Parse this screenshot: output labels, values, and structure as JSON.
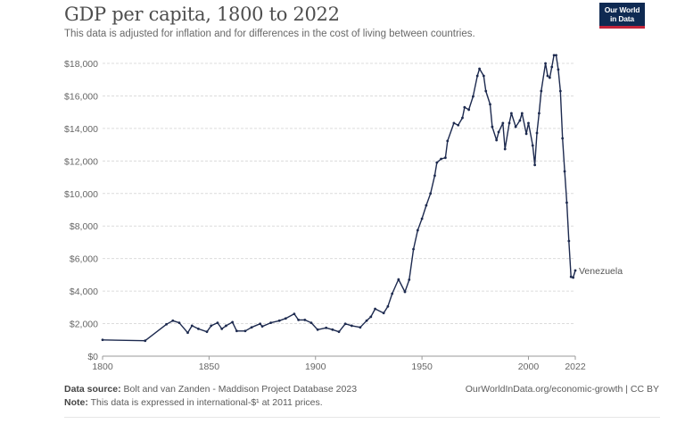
{
  "header": {
    "title": "GDP per capita, 1800 to 2022",
    "subtitle": "This data is adjusted for inflation and for differences in the cost of living between countries.",
    "logo_text": "Our World in Data"
  },
  "footer": {
    "source_label": "Data source:",
    "source_text": "Bolt and van Zanden - Maddison Project Database 2023",
    "note_label": "Note:",
    "note_text": "This data is expressed in international-$¹ at 2011 prices.",
    "credit": "OurWorldInData.org/economic-growth | CC BY"
  },
  "chart_data": {
    "type": "line",
    "title": "GDP per capita, 1800 to 2022",
    "xlim": [
      1800,
      2022
    ],
    "ylim": [
      0,
      18000
    ],
    "x_ticks": [
      "1800",
      "1850",
      "1900",
      "1950",
      "2000",
      "2022"
    ],
    "y_ticks": [
      "$0",
      "$2,000",
      "$4,000",
      "$6,000",
      "$8,000",
      "$10,000",
      "$12,000",
      "$14,000",
      "$16,000",
      "$18,000"
    ],
    "grid": "horizontal dotted",
    "line_color": "#1d2a4f",
    "series": [
      {
        "name": "Venezuela",
        "points": [
          [
            1800,
            1000
          ],
          [
            1820,
            950
          ],
          [
            1830,
            1960
          ],
          [
            1833,
            2180
          ],
          [
            1836,
            2050
          ],
          [
            1840,
            1440
          ],
          [
            1842,
            1870
          ],
          [
            1845,
            1680
          ],
          [
            1849,
            1500
          ],
          [
            1851,
            1870
          ],
          [
            1854,
            2050
          ],
          [
            1856,
            1680
          ],
          [
            1858,
            1870
          ],
          [
            1861,
            2090
          ],
          [
            1863,
            1550
          ],
          [
            1867,
            1550
          ],
          [
            1870,
            1770
          ],
          [
            1874,
            1990
          ],
          [
            1875,
            1830
          ],
          [
            1879,
            2050
          ],
          [
            1883,
            2180
          ],
          [
            1886,
            2320
          ],
          [
            1890,
            2600
          ],
          [
            1892,
            2230
          ],
          [
            1895,
            2230
          ],
          [
            1898,
            2050
          ],
          [
            1901,
            1630
          ],
          [
            1905,
            1740
          ],
          [
            1908,
            1630
          ],
          [
            1911,
            1500
          ],
          [
            1914,
            1990
          ],
          [
            1917,
            1870
          ],
          [
            1921,
            1770
          ],
          [
            1924,
            2180
          ],
          [
            1926,
            2420
          ],
          [
            1928,
            2910
          ],
          [
            1932,
            2650
          ],
          [
            1934,
            3060
          ],
          [
            1936,
            3840
          ],
          [
            1939,
            4720
          ],
          [
            1942,
            3950
          ],
          [
            1944,
            4700
          ],
          [
            1946,
            6580
          ],
          [
            1948,
            7740
          ],
          [
            1950,
            8450
          ],
          [
            1952,
            9270
          ],
          [
            1954,
            10000
          ],
          [
            1956,
            11100
          ],
          [
            1957,
            11900
          ],
          [
            1959,
            12130
          ],
          [
            1961,
            12200
          ],
          [
            1962,
            13230
          ],
          [
            1965,
            14330
          ],
          [
            1967,
            14200
          ],
          [
            1969,
            14650
          ],
          [
            1970,
            15300
          ],
          [
            1972,
            15150
          ],
          [
            1974,
            15970
          ],
          [
            1976,
            17230
          ],
          [
            1977,
            17670
          ],
          [
            1979,
            17230
          ],
          [
            1980,
            16300
          ],
          [
            1982,
            15480
          ],
          [
            1983,
            14100
          ],
          [
            1985,
            13280
          ],
          [
            1986,
            13780
          ],
          [
            1988,
            14330
          ],
          [
            1989,
            12730
          ],
          [
            1991,
            14330
          ],
          [
            1992,
            14930
          ],
          [
            1994,
            14100
          ],
          [
            1996,
            14490
          ],
          [
            1997,
            14930
          ],
          [
            1999,
            13670
          ],
          [
            2000,
            14330
          ],
          [
            2002,
            12950
          ],
          [
            2003,
            11750
          ],
          [
            2004,
            13720
          ],
          [
            2005,
            14930
          ],
          [
            2006,
            16300
          ],
          [
            2008,
            18000
          ],
          [
            2009,
            17230
          ],
          [
            2010,
            17120
          ],
          [
            2011,
            17780
          ],
          [
            2012,
            18500
          ],
          [
            2013,
            18500
          ],
          [
            2014,
            17620
          ],
          [
            2015,
            16300
          ],
          [
            2016,
            13390
          ],
          [
            2017,
            11360
          ],
          [
            2018,
            9440
          ],
          [
            2019,
            7080
          ],
          [
            2020,
            4880
          ],
          [
            2021,
            4830
          ],
          [
            2022,
            5270
          ]
        ]
      }
    ]
  }
}
